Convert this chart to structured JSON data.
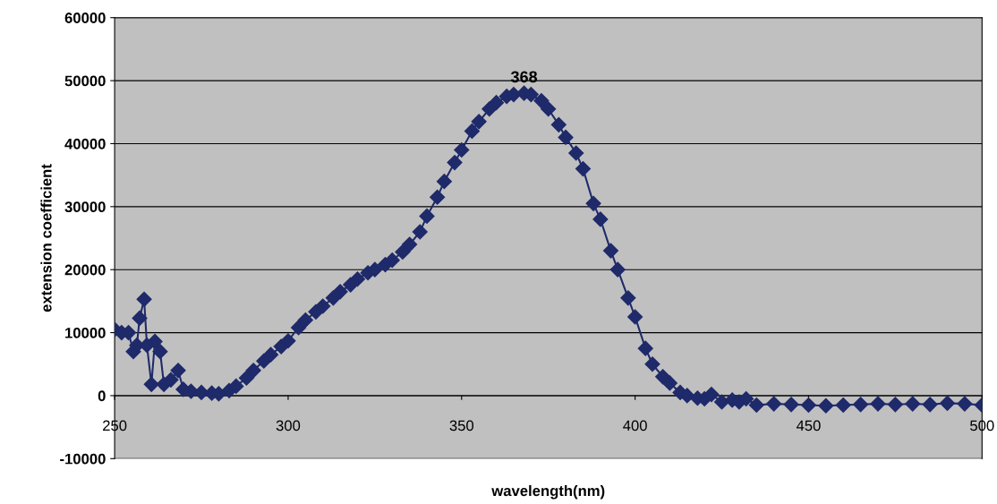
{
  "chart_data": {
    "type": "line",
    "xlabel": "wavelength(nm)",
    "ylabel": "extension coefficient",
    "xlim": [
      250,
      500
    ],
    "xticks": [
      250,
      300,
      350,
      400,
      450,
      500
    ],
    "ylim": [
      -10000,
      60000
    ],
    "yticks": [
      -10000,
      0,
      10000,
      20000,
      30000,
      40000,
      50000,
      60000
    ],
    "grid": "y",
    "marker": "diamond",
    "line_style": "solid",
    "annotations": [
      {
        "text": "368",
        "x": 368,
        "y": 48000
      }
    ],
    "series": [
      {
        "color": "#1f2a6b",
        "x": [
          250,
          252,
          254,
          255.4,
          256.4,
          257.2,
          258.5,
          259.3,
          260.6,
          261.6,
          263.1,
          264.2,
          266.2,
          268.3,
          269.8,
          272,
          275,
          278,
          280,
          283,
          285,
          288,
          290,
          293,
          295,
          298,
          300,
          303,
          305,
          308,
          310,
          313,
          315,
          318,
          320,
          323,
          325,
          328,
          330,
          333,
          335,
          338,
          340,
          343,
          345,
          348,
          350,
          353,
          355,
          358,
          360,
          363,
          365,
          368,
          370,
          373,
          375,
          378,
          380,
          383,
          385,
          388,
          390,
          393,
          395,
          398,
          400,
          403,
          405,
          408,
          410,
          413,
          415,
          418,
          420,
          422,
          425,
          428,
          430,
          432,
          435,
          440,
          445,
          450,
          455,
          460,
          465,
          470,
          475,
          480,
          485,
          490,
          495,
          500
        ],
        "values": [
          10500,
          10000,
          10000,
          7000,
          8000,
          12300,
          15300,
          8000,
          1800,
          8600,
          7000,
          1800,
          2500,
          4000,
          1000,
          700,
          500,
          400,
          300,
          800,
          1500,
          2800,
          4000,
          5500,
          6500,
          7800,
          8700,
          10800,
          12000,
          13300,
          14200,
          15500,
          16500,
          17600,
          18500,
          19500,
          20000,
          20800,
          21500,
          22800,
          24000,
          26000,
          28500,
          31500,
          34000,
          37000,
          39000,
          42000,
          43500,
          45500,
          46500,
          47500,
          47800,
          48000,
          47800,
          46800,
          45500,
          43000,
          41000,
          38500,
          36000,
          30500,
          28000,
          23000,
          20000,
          15500,
          12500,
          7500,
          5000,
          3000,
          2000,
          500,
          0,
          -400,
          -500,
          200,
          -1000,
          -700,
          -1000,
          -500,
          -1500,
          -1300,
          -1400,
          -1500,
          -1600,
          -1500,
          -1400,
          -1300,
          -1400,
          -1300,
          -1400,
          -1200,
          -1300,
          -1500
        ]
      }
    ]
  }
}
